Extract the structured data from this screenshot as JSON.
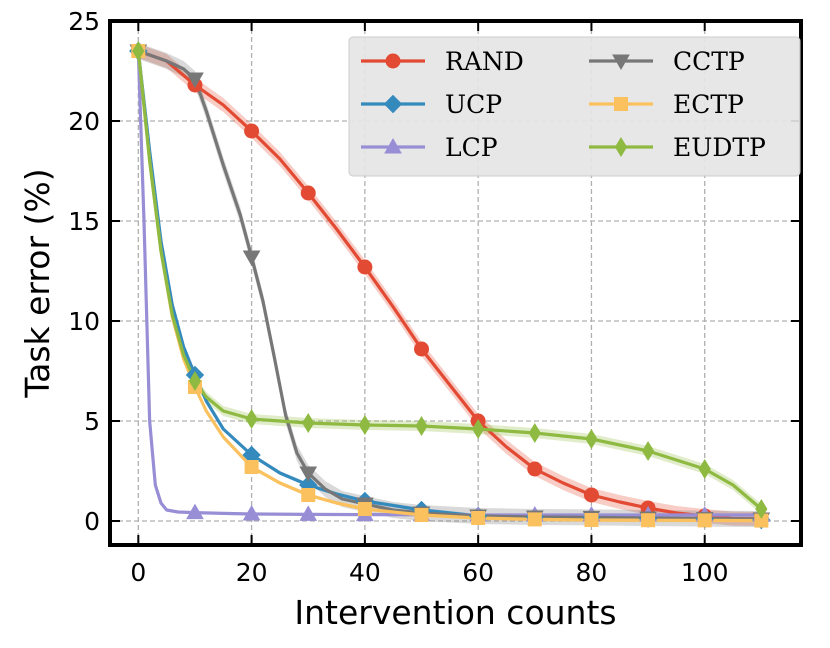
{
  "chart_data": {
    "type": "line",
    "title": "",
    "xlabel": "Intervention counts",
    "ylabel": "Task error (%)",
    "xlim": [
      -5,
      117
    ],
    "ylim": [
      -1.2,
      25
    ],
    "xticks": [
      0,
      20,
      40,
      60,
      80,
      100
    ],
    "yticks": [
      0,
      5,
      10,
      15,
      20,
      25
    ],
    "grid": true,
    "legend": {
      "placement": "top-right",
      "columns": 2
    },
    "series": [
      {
        "name": "RAND",
        "color": "#e24a33",
        "marker": "circle",
        "band": 0.35,
        "x": [
          0,
          5,
          10,
          15,
          20,
          25,
          30,
          35,
          40,
          45,
          50,
          55,
          60,
          65,
          70,
          75,
          80,
          85,
          90,
          95,
          100,
          105,
          110
        ],
        "y": [
          23.5,
          23.0,
          21.8,
          20.8,
          19.5,
          18.1,
          16.4,
          14.6,
          12.7,
          10.7,
          8.6,
          6.8,
          5.0,
          3.7,
          2.6,
          1.9,
          1.3,
          0.95,
          0.65,
          0.4,
          0.25,
          0.12,
          0.1
        ],
        "markers_at": [
          0,
          10,
          20,
          30,
          40,
          50,
          60,
          70,
          80,
          90,
          100,
          110
        ]
      },
      {
        "name": "UCP",
        "color": "#348abd",
        "marker": "diamond",
        "band": 0.1,
        "x": [
          0,
          2,
          4,
          6,
          8,
          10,
          12,
          15,
          20,
          25,
          30,
          35,
          40,
          50,
          60,
          70,
          80,
          90,
          100,
          110
        ],
        "y": [
          23.5,
          18.5,
          14.0,
          10.8,
          8.7,
          7.3,
          6.0,
          4.6,
          3.3,
          2.4,
          1.8,
          1.35,
          1.0,
          0.55,
          0.25,
          0.2,
          0.18,
          0.12,
          0.1,
          0.05
        ],
        "markers_at": [
          0,
          10,
          20,
          30,
          40,
          50,
          60,
          70,
          80,
          90,
          100,
          110
        ]
      },
      {
        "name": "LCP",
        "color": "#988ed5",
        "marker": "triangle-up",
        "band": 0,
        "x": [
          0,
          1,
          2,
          3,
          4,
          5,
          7,
          10,
          15,
          20,
          30,
          40,
          50,
          60,
          70,
          80,
          90,
          100,
          110
        ],
        "y": [
          23.5,
          15.0,
          5.0,
          1.8,
          0.9,
          0.55,
          0.45,
          0.42,
          0.38,
          0.35,
          0.33,
          0.32,
          0.31,
          0.3,
          0.3,
          0.3,
          0.3,
          0.3,
          0.3
        ],
        "markers_at": [
          10,
          20,
          30,
          40,
          50,
          60,
          70,
          80,
          90,
          100,
          110
        ]
      },
      {
        "name": "CCTP",
        "color": "#777777",
        "marker": "triangle-down",
        "band": 0.4,
        "x": [
          0,
          2,
          5,
          8,
          10,
          12,
          15,
          18,
          20,
          22,
          24,
          26,
          28,
          30,
          33,
          36,
          40,
          45,
          50,
          60,
          70,
          80,
          90,
          100,
          110
        ],
        "y": [
          23.5,
          23.3,
          23.0,
          22.6,
          22.1,
          20.5,
          17.8,
          15.3,
          13.2,
          11.0,
          8.2,
          5.3,
          3.4,
          2.4,
          1.6,
          1.1,
          0.85,
          0.55,
          0.4,
          0.25,
          0.2,
          0.18,
          0.15,
          0.12,
          0.1
        ],
        "markers_at": [
          0,
          10,
          20,
          30,
          40,
          50,
          60,
          70,
          80,
          90,
          100,
          110
        ]
      },
      {
        "name": "ECTP",
        "color": "#fbc15e",
        "marker": "square",
        "band": 0.1,
        "x": [
          0,
          2,
          4,
          6,
          8,
          10,
          12,
          15,
          20,
          25,
          30,
          35,
          40,
          50,
          60,
          70,
          80,
          90,
          100,
          110
        ],
        "y": [
          23.5,
          18.0,
          13.5,
          10.2,
          8.1,
          6.7,
          5.5,
          4.2,
          2.7,
          1.9,
          1.3,
          0.9,
          0.6,
          0.3,
          0.15,
          0.08,
          0.05,
          0.04,
          0.03,
          0.02
        ],
        "markers_at": [
          0,
          10,
          20,
          30,
          40,
          50,
          60,
          70,
          80,
          90,
          100,
          110
        ]
      },
      {
        "name": "EUDTP",
        "color": "#8eba42",
        "marker": "thin-diamond",
        "band": 0.25,
        "x": [
          0,
          2,
          4,
          6,
          8,
          10,
          12,
          15,
          20,
          25,
          30,
          40,
          50,
          60,
          70,
          80,
          90,
          100,
          105,
          110
        ],
        "y": [
          23.5,
          18.0,
          13.5,
          10.3,
          8.3,
          7.0,
          6.2,
          5.5,
          5.1,
          5.0,
          4.9,
          4.8,
          4.75,
          4.6,
          4.4,
          4.1,
          3.5,
          2.6,
          1.8,
          0.6
        ],
        "markers_at": [
          0,
          10,
          20,
          30,
          40,
          50,
          60,
          70,
          80,
          90,
          100,
          110
        ]
      }
    ]
  }
}
